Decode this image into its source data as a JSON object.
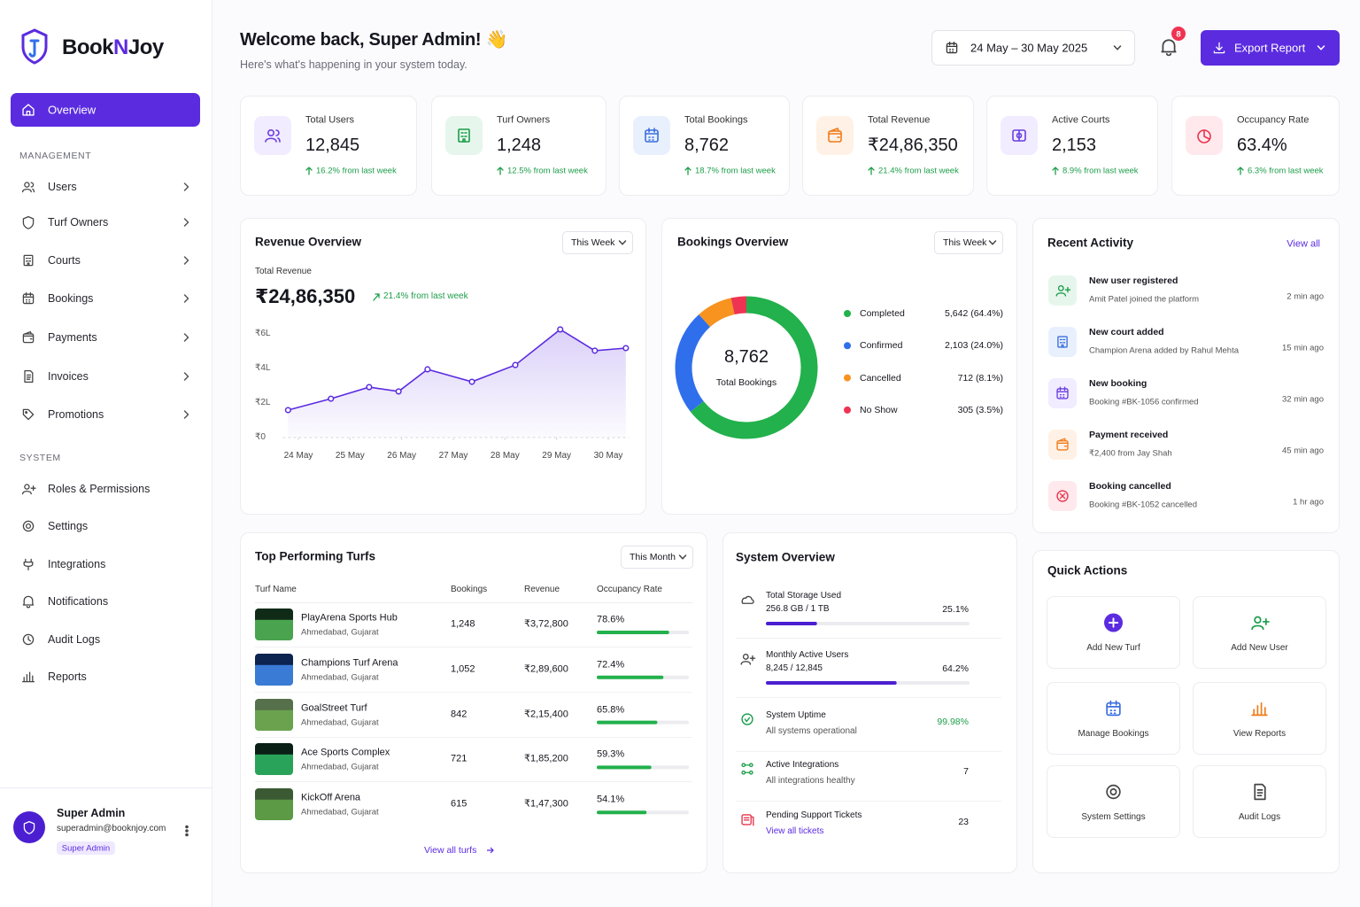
{
  "sidebar": {
    "brand": [
      "Book",
      "N",
      "Joy"
    ],
    "active": "Overview",
    "sections": [
      {
        "title": "MANAGEMENT",
        "items": [
          "Users",
          "Turf Owners",
          "Courts",
          "Bookings",
          "Payments",
          "Invoices",
          "Promotions"
        ]
      },
      {
        "title": "SYSTEM",
        "items": [
          "Roles & Permissions",
          "Settings",
          "Integrations",
          "Notifications",
          "Audit Logs",
          "Reports"
        ]
      }
    ],
    "user": {
      "name": "Super Admin",
      "email": "superadmin@booknjoy.com",
      "role": "Super Admin"
    }
  },
  "header": {
    "title": "Welcome back, Super Admin! 👋",
    "subtitle": "Here's what's happening in your system today.",
    "date_range": "24 May – 30 May 2025",
    "notification_count": "8",
    "export": "Export Report"
  },
  "stats": [
    {
      "label": "Total Users",
      "value": "12,845",
      "change": "16.2% from last week"
    },
    {
      "label": "Turf Owners",
      "value": "1,248",
      "change": "12.5% from last week"
    },
    {
      "label": "Total Bookings",
      "value": "8,762",
      "change": "18.7% from last week"
    },
    {
      "label": "Total Revenue",
      "value": "₹24,86,350",
      "change": "21.4% from last week"
    },
    {
      "label": "Active Courts",
      "value": "2,153",
      "change": "8.9% from last week"
    },
    {
      "label": "Occupancy Rate",
      "value": "63.4%",
      "change": "6.3% from last week"
    }
  ],
  "revenue_summary": {
    "filter": "This Week",
    "total_label": "Total Revenue",
    "total": "₹24,86,350",
    "change": "21.4% from last week"
  },
  "bookings_summary": {
    "filter": "This Week"
  },
  "chart_data": [
    {
      "type": "line",
      "title": "Revenue Overview",
      "x": [
        -0.2,
        0.63,
        1.37,
        1.94,
        2.5,
        3.36,
        4.2,
        5.07,
        5.74,
        6.34
      ],
      "values": [
        1.59,
        2.25,
        2.92,
        2.67,
        3.95,
        3.23,
        4.2,
        6.26,
        5.03,
        5.18
      ],
      "color": "#5b2be0",
      "area": true,
      "grid": false,
      "xlim": [
        -0.3,
        6.4
      ],
      "xticks": [
        {
          "value": 0,
          "label": "24 May"
        },
        {
          "value": 1,
          "label": "25 May"
        },
        {
          "value": 2,
          "label": "26 May"
        },
        {
          "value": 3,
          "label": "27 May"
        },
        {
          "value": 4,
          "label": "28 May"
        },
        {
          "value": 5,
          "label": "29 May"
        },
        {
          "value": 6,
          "label": "30 May"
        }
      ],
      "ylim": [
        0,
        6
      ],
      "yticks": [
        {
          "value": 0,
          "label": "₹0"
        },
        {
          "value": 2,
          "label": "₹2L"
        },
        {
          "value": 4,
          "label": "₹4L"
        },
        {
          "value": 6,
          "label": "₹6L"
        }
      ]
    },
    {
      "type": "pie",
      "title": "Bookings Overview",
      "center_value": "8,762",
      "center_label": "Total Bookings",
      "categories": [
        "Completed",
        "Confirmed",
        "Cancelled",
        "No Show"
      ],
      "values": [
        5642,
        2103,
        712,
        305
      ],
      "value_labels": [
        "5,642 (64.4%)",
        "2,103 (24.0%)",
        "712 (8.1%)",
        "305 (3.5%)"
      ],
      "colors": [
        "#22b14c",
        "#2f6fec",
        "#f7931e",
        "#ef3352"
      ]
    }
  ],
  "activity": {
    "title": "Recent Activity",
    "view_all": "View all",
    "items": [
      {
        "title": "New user registered",
        "detail": "Amit Patel joined the platform",
        "time": "2 min ago"
      },
      {
        "title": "New court added",
        "detail": "Champion Arena added by Rahul Mehta",
        "time": "15 min ago"
      },
      {
        "title": "New booking",
        "detail": "Booking #BK-1056 confirmed",
        "time": "32 min ago"
      },
      {
        "title": "Payment received",
        "detail": "₹2,400 from Jay Shah",
        "time": "45 min ago"
      },
      {
        "title": "Booking cancelled",
        "detail": "Booking #BK-1052 cancelled",
        "time": "1 hr ago"
      }
    ]
  },
  "top_turfs": {
    "title": "Top Performing Turfs",
    "filter": "This Month",
    "columns": [
      "Turf Name",
      "Bookings",
      "Revenue",
      "Occupancy Rate"
    ],
    "rows": [
      {
        "name": "PlayArena Sports Hub",
        "location": "Ahmedabad, Gujarat",
        "bookings": "1,248",
        "revenue": "₹3,72,800",
        "occupancy": 78.6,
        "occupancy_label": "78.6%"
      },
      {
        "name": "Champions Turf Arena",
        "location": "Ahmedabad, Gujarat",
        "bookings": "1,052",
        "revenue": "₹2,89,600",
        "occupancy": 72.4,
        "occupancy_label": "72.4%"
      },
      {
        "name": "GoalStreet Turf",
        "location": "Ahmedabad, Gujarat",
        "bookings": "842",
        "revenue": "₹2,15,400",
        "occupancy": 65.8,
        "occupancy_label": "65.8%"
      },
      {
        "name": "Ace Sports Complex",
        "location": "Ahmedabad, Gujarat",
        "bookings": "721",
        "revenue": "₹1,85,200",
        "occupancy": 59.3,
        "occupancy_label": "59.3%"
      },
      {
        "name": "KickOff Arena",
        "location": "Ahmedabad, Gujarat",
        "bookings": "615",
        "revenue": "₹1,47,300",
        "occupancy": 54.1,
        "occupancy_label": "54.1%"
      }
    ],
    "footer": "View all turfs"
  },
  "system": {
    "title": "System Overview",
    "items": [
      {
        "title": "Total Storage Used",
        "detail": "256.8 GB / 1 TB",
        "value": "25.1%",
        "progress": 25.1
      },
      {
        "title": "Monthly Active Users",
        "detail": "8,245 / 12,845",
        "value": "64.2%",
        "progress": 64.2
      },
      {
        "title": "System Uptime",
        "detail": "All systems operational",
        "value": "99.98%"
      },
      {
        "title": "Active Integrations",
        "detail": "All integrations healthy",
        "value": "7"
      },
      {
        "title": "Pending Support Tickets",
        "detail": "View all tickets",
        "value": "23"
      }
    ]
  },
  "quick_actions": {
    "title": "Quick Actions",
    "items": [
      "Add New Turf",
      "Add New User",
      "Manage Bookings",
      "View Reports",
      "System Settings",
      "Audit Logs"
    ]
  }
}
